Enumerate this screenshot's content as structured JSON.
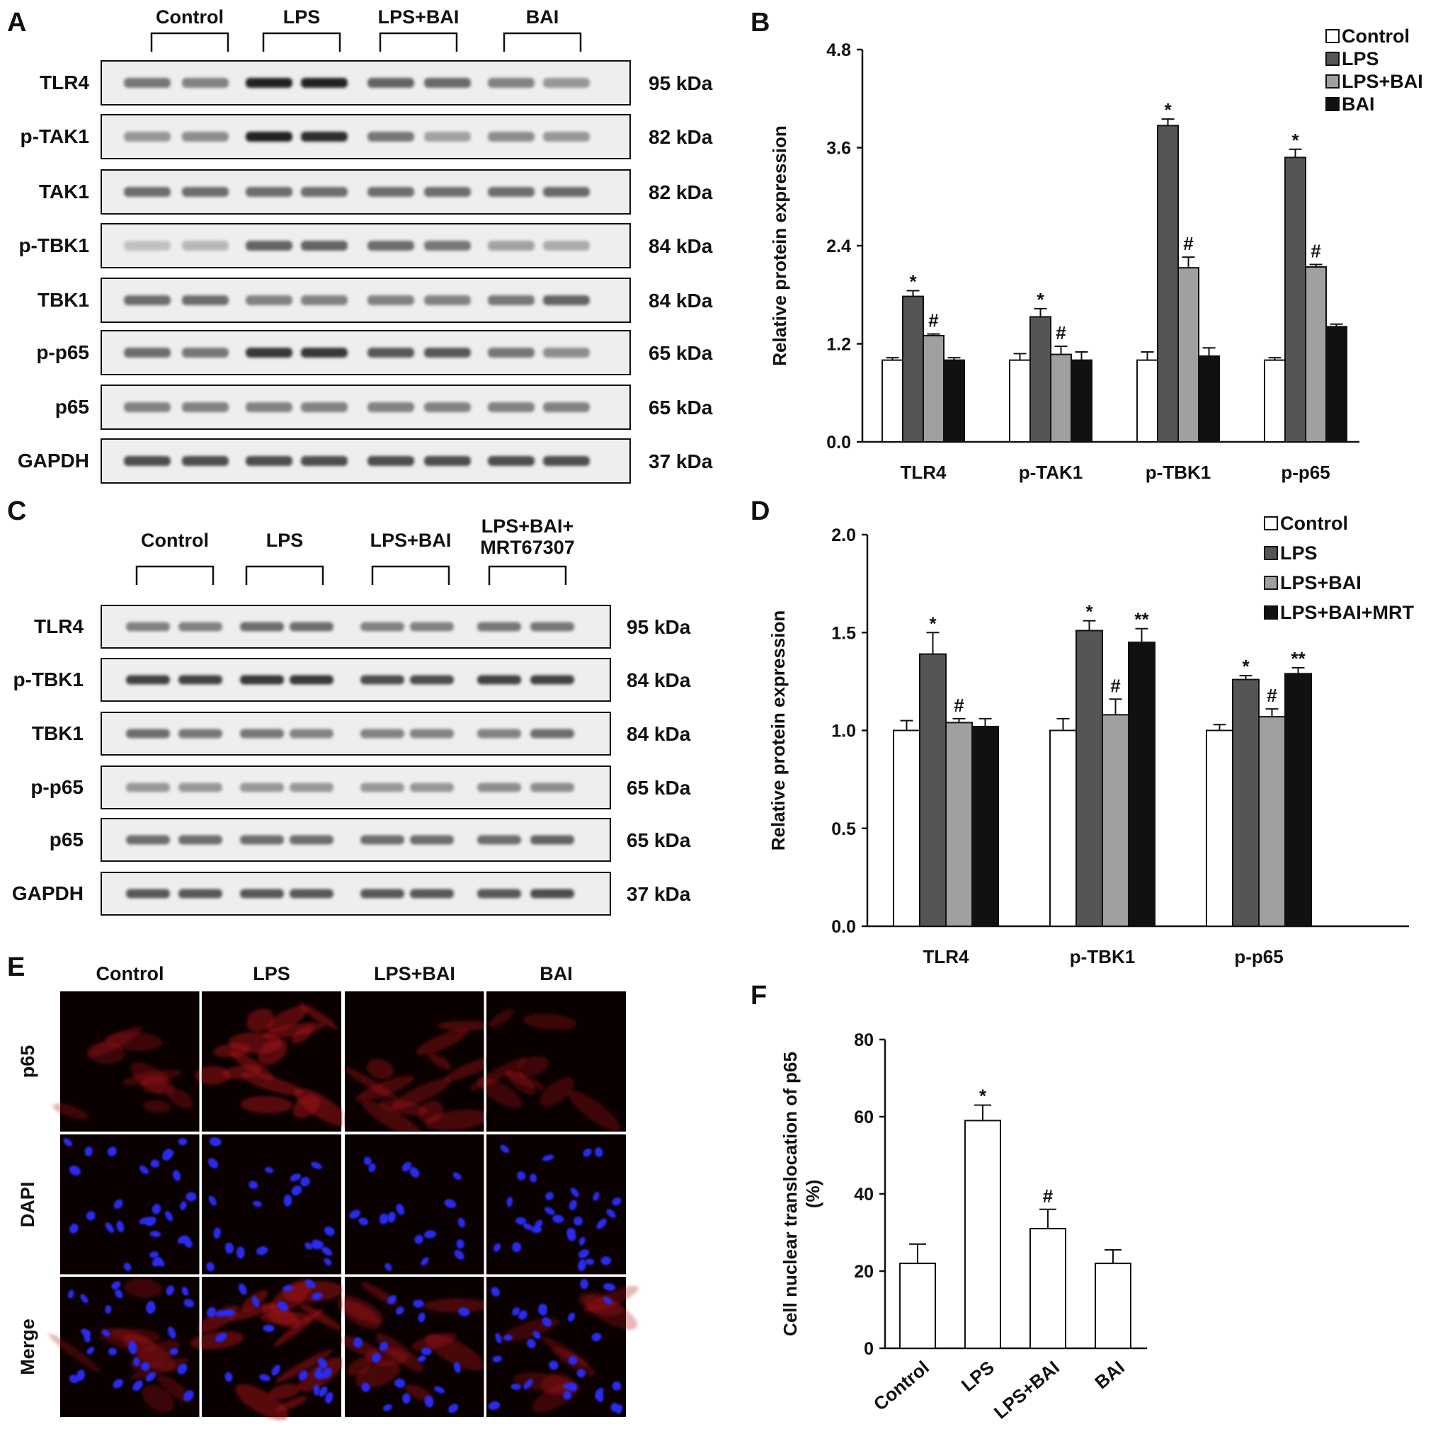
{
  "panels": {
    "A": {
      "letter": "A",
      "groups": [
        "Control",
        "LPS",
        "LPS+BAI",
        "BAI"
      ],
      "rows": [
        {
          "label": "TLR4",
          "kda": "95 kDa",
          "int": [
            0.55,
            0.5,
            0.95,
            0.95,
            0.65,
            0.62,
            0.5,
            0.4
          ]
        },
        {
          "label": "p-TAK1",
          "kda": "82 kDa",
          "int": [
            0.4,
            0.45,
            0.95,
            0.9,
            0.55,
            0.35,
            0.45,
            0.4
          ]
        },
        {
          "label": "TAK1",
          "kda": "82 kDa",
          "int": [
            0.6,
            0.6,
            0.6,
            0.6,
            0.6,
            0.6,
            0.6,
            0.62
          ]
        },
        {
          "label": "p-TBK1",
          "kda": "84 kDa",
          "int": [
            0.2,
            0.25,
            0.65,
            0.65,
            0.6,
            0.55,
            0.35,
            0.3
          ]
        },
        {
          "label": "TBK1",
          "kda": "84 kDa",
          "int": [
            0.6,
            0.6,
            0.5,
            0.5,
            0.5,
            0.5,
            0.55,
            0.65
          ]
        },
        {
          "label": "p-p65",
          "kda": "65 kDa",
          "int": [
            0.6,
            0.55,
            0.85,
            0.85,
            0.7,
            0.7,
            0.55,
            0.45
          ]
        },
        {
          "label": "p65",
          "kda": "65 kDa",
          "int": [
            0.5,
            0.5,
            0.5,
            0.5,
            0.5,
            0.5,
            0.5,
            0.5
          ]
        },
        {
          "label": "GAPDH",
          "kda": "37 kDa",
          "int": [
            0.75,
            0.75,
            0.75,
            0.75,
            0.75,
            0.75,
            0.75,
            0.75
          ]
        }
      ]
    },
    "B": {
      "letter": "B"
    },
    "C": {
      "letter": "C",
      "groups": [
        "Control",
        "LPS",
        "LPS+BAI",
        "LPS+BAI+\nMRT67307"
      ],
      "rows": [
        {
          "label": "TLR4",
          "kda": "95 kDa",
          "int": [
            0.5,
            0.5,
            0.6,
            0.6,
            0.5,
            0.5,
            0.55,
            0.55
          ]
        },
        {
          "label": "p-TBK1",
          "kda": "84 kDa",
          "int": [
            0.8,
            0.8,
            0.85,
            0.85,
            0.75,
            0.75,
            0.8,
            0.8
          ]
        },
        {
          "label": "TBK1",
          "kda": "84 kDa",
          "int": [
            0.6,
            0.55,
            0.55,
            0.5,
            0.5,
            0.5,
            0.5,
            0.6
          ]
        },
        {
          "label": "p-p65",
          "kda": "65 kDa",
          "int": [
            0.4,
            0.4,
            0.4,
            0.4,
            0.4,
            0.4,
            0.45,
            0.45
          ]
        },
        {
          "label": "p65",
          "kda": "65 kDa",
          "int": [
            0.6,
            0.6,
            0.6,
            0.6,
            0.6,
            0.6,
            0.6,
            0.65
          ]
        },
        {
          "label": "GAPDH",
          "kda": "37 kDa",
          "int": [
            0.7,
            0.7,
            0.7,
            0.7,
            0.7,
            0.7,
            0.7,
            0.75
          ]
        }
      ]
    },
    "D": {
      "letter": "D"
    },
    "E": {
      "letter": "E",
      "columns": [
        "Control",
        "LPS",
        "LPS+BAI",
        "BAI"
      ],
      "rows": [
        "p65",
        "DAPI",
        "Merge"
      ],
      "colors": {
        "p65": "#b0141e",
        "dapi": "#2a2cf0",
        "background": "#0a0000"
      }
    },
    "F": {
      "letter": "F"
    }
  },
  "chart_data": [
    {
      "id": "B",
      "type": "bar",
      "categories": [
        "TLR4",
        "p-TAK1",
        "p-TBK1",
        "p-p65"
      ],
      "series": [
        {
          "name": "Control",
          "color": "#ffffff",
          "values": [
            1.0,
            1.0,
            1.0,
            1.0
          ],
          "errors": [
            0.03,
            0.08,
            0.1,
            0.03
          ],
          "marks": [
            "",
            "",
            "",
            ""
          ]
        },
        {
          "name": "LPS",
          "color": "#555555",
          "values": [
            1.78,
            1.53,
            3.87,
            3.48
          ],
          "errors": [
            0.07,
            0.1,
            0.08,
            0.1
          ],
          "marks": [
            "*",
            "*",
            "*",
            "*"
          ]
        },
        {
          "name": "LPS+BAI",
          "color": "#a0a0a0",
          "values": [
            1.3,
            1.07,
            2.13,
            2.14
          ],
          "errors": [
            0.02,
            0.1,
            0.13,
            0.03
          ],
          "marks": [
            "#",
            "#",
            "#",
            "#"
          ]
        },
        {
          "name": "BAI",
          "color": "#111111",
          "values": [
            1.0,
            1.0,
            1.05,
            1.41
          ],
          "errors": [
            0.03,
            0.1,
            0.1,
            0.03
          ],
          "marks": [
            "",
            "",
            "",
            ""
          ]
        }
      ],
      "ylabel": "Relative protein expression",
      "ylim": [
        0,
        4.8
      ],
      "yticks": [
        "0.0",
        "1.2",
        "2.4",
        "3.6",
        "4.8"
      ],
      "ytick_values": [
        0,
        1.2,
        2.4,
        3.6,
        4.8
      ],
      "legend": "top-right",
      "grid": false
    },
    {
      "id": "D",
      "type": "bar",
      "categories": [
        "TLR4",
        "p-TBK1",
        "p-p65"
      ],
      "series": [
        {
          "name": "Control",
          "color": "#ffffff",
          "values": [
            1.0,
            1.0,
            1.0
          ],
          "errors": [
            0.05,
            0.06,
            0.03
          ],
          "marks": [
            "",
            "",
            ""
          ]
        },
        {
          "name": "LPS",
          "color": "#555555",
          "values": [
            1.39,
            1.51,
            1.26
          ],
          "errors": [
            0.11,
            0.05,
            0.02
          ],
          "marks": [
            "*",
            "*",
            "*"
          ]
        },
        {
          "name": "LPS+BAI",
          "color": "#a0a0a0",
          "values": [
            1.04,
            1.08,
            1.07
          ],
          "errors": [
            0.02,
            0.08,
            0.04
          ],
          "marks": [
            "#",
            "#",
            "#"
          ]
        },
        {
          "name": "LPS+BAI+MRT",
          "color": "#111111",
          "values": [
            1.02,
            1.45,
            1.29
          ],
          "errors": [
            0.04,
            0.07,
            0.03
          ],
          "marks": [
            "",
            "**",
            "**"
          ]
        }
      ],
      "ylabel": "Relative protein expression",
      "ylim": [
        0,
        2.0
      ],
      "yticks": [
        "0.0",
        "0.5",
        "1.0",
        "1.5",
        "2.0"
      ],
      "ytick_values": [
        0,
        0.5,
        1.0,
        1.5,
        2.0
      ],
      "legend": "top-right",
      "grid": false
    },
    {
      "id": "F",
      "type": "bar",
      "categories": [
        "Control",
        "LPS",
        "LPS+BAI",
        "BAI"
      ],
      "series": [
        {
          "color": "#ffffff",
          "values": [
            22,
            59,
            31,
            22
          ],
          "errors": [
            5,
            4,
            5,
            3.5
          ],
          "marks": [
            "",
            "*",
            "#",
            ""
          ]
        }
      ],
      "ylabel": "Cell nuclear translocation of p65\n(%)",
      "ylim": [
        0,
        80
      ],
      "yticks": [
        "0",
        "20",
        "40",
        "60",
        "80"
      ],
      "ytick_values": [
        0,
        20,
        40,
        60,
        80
      ],
      "grid": false
    }
  ]
}
